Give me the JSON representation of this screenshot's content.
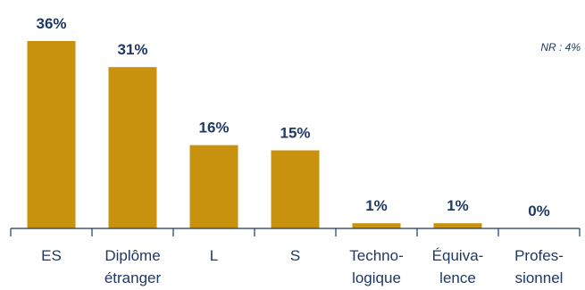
{
  "chart_data": {
    "type": "bar",
    "categories": [
      [
        "ES"
      ],
      [
        "Diplôme",
        "étranger"
      ],
      [
        "L"
      ],
      [
        "S"
      ],
      [
        "Techno-",
        "logique"
      ],
      [
        "Équiva-",
        "lence"
      ],
      [
        "Profes-",
        "sionnel"
      ]
    ],
    "values": [
      36,
      31,
      16,
      15,
      1,
      1,
      0
    ],
    "value_labels": [
      "36%",
      "31%",
      "16%",
      "15%",
      "1%",
      "1%",
      "0%"
    ],
    "ylim": [
      0,
      36
    ],
    "grid": false,
    "legend": "none",
    "annotation": "NR : 4%",
    "colors": {
      "bar": "#C8920E",
      "value_text": "#1F3864",
      "axis": "#1F3864",
      "category_text": "#1F3864",
      "annotation_text": "#1F3864"
    }
  }
}
